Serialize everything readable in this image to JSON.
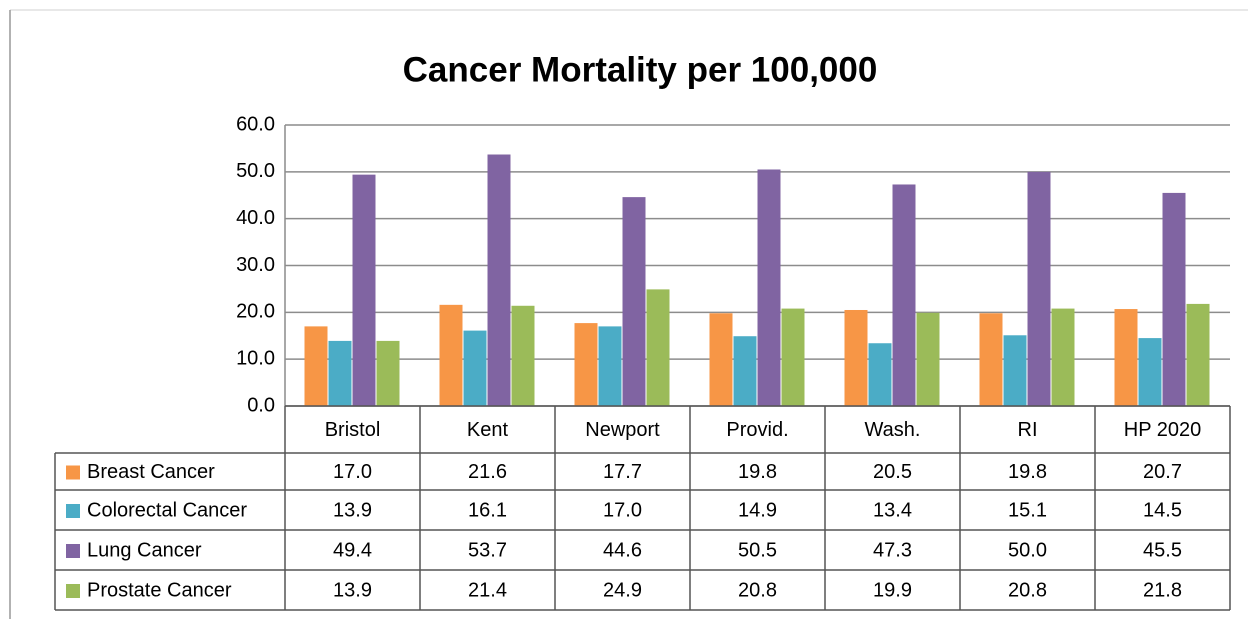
{
  "chart_data": {
    "type": "bar",
    "title": "Cancer Mortality per 100,000",
    "categories": [
      "Bristol",
      "Kent",
      "Newport",
      "Provid.",
      "Wash.",
      "RI",
      "HP 2020"
    ],
    "series": [
      {
        "name": "Breast Cancer",
        "color": "#f79646",
        "values": [
          17.0,
          21.6,
          17.7,
          19.8,
          20.5,
          19.8,
          20.7
        ],
        "value_labels": [
          "17.0",
          "21.6",
          "17.7",
          "19.8",
          "20.5",
          "19.8",
          "20.7"
        ]
      },
      {
        "name": "Colorectal Cancer",
        "color": "#4bacc6",
        "values": [
          13.9,
          16.1,
          17.0,
          14.9,
          13.4,
          15.1,
          14.5
        ],
        "value_labels": [
          "13.9",
          "16.1",
          "17.0",
          "14.9",
          "13.4",
          "15.1",
          "14.5"
        ]
      },
      {
        "name": "Lung Cancer",
        "color": "#8064a2",
        "values": [
          49.4,
          53.7,
          44.6,
          50.5,
          47.3,
          50.0,
          45.5
        ],
        "value_labels": [
          "49.4",
          "53.7",
          "44.6",
          "50.5",
          "47.3",
          "50.0",
          "45.5"
        ]
      },
      {
        "name": "Prostate Cancer",
        "color": "#9bbb59",
        "values": [
          13.9,
          21.4,
          24.9,
          20.8,
          19.9,
          20.8,
          21.8
        ],
        "value_labels": [
          "13.9",
          "21.4",
          "24.9",
          "20.8",
          "19.9",
          "20.8",
          "21.8"
        ]
      }
    ],
    "ylim": [
      0,
      60
    ],
    "yticks": [
      {
        "value": 0,
        "label": "0.0"
      },
      {
        "value": 10,
        "label": "10.0"
      },
      {
        "value": 20,
        "label": "20.0"
      },
      {
        "value": 30,
        "label": "30.0"
      },
      {
        "value": 40,
        "label": "40.0"
      },
      {
        "value": 50,
        "label": "50.0"
      },
      {
        "value": 60,
        "label": "60.0"
      }
    ],
    "grid": true,
    "legend": "table"
  }
}
